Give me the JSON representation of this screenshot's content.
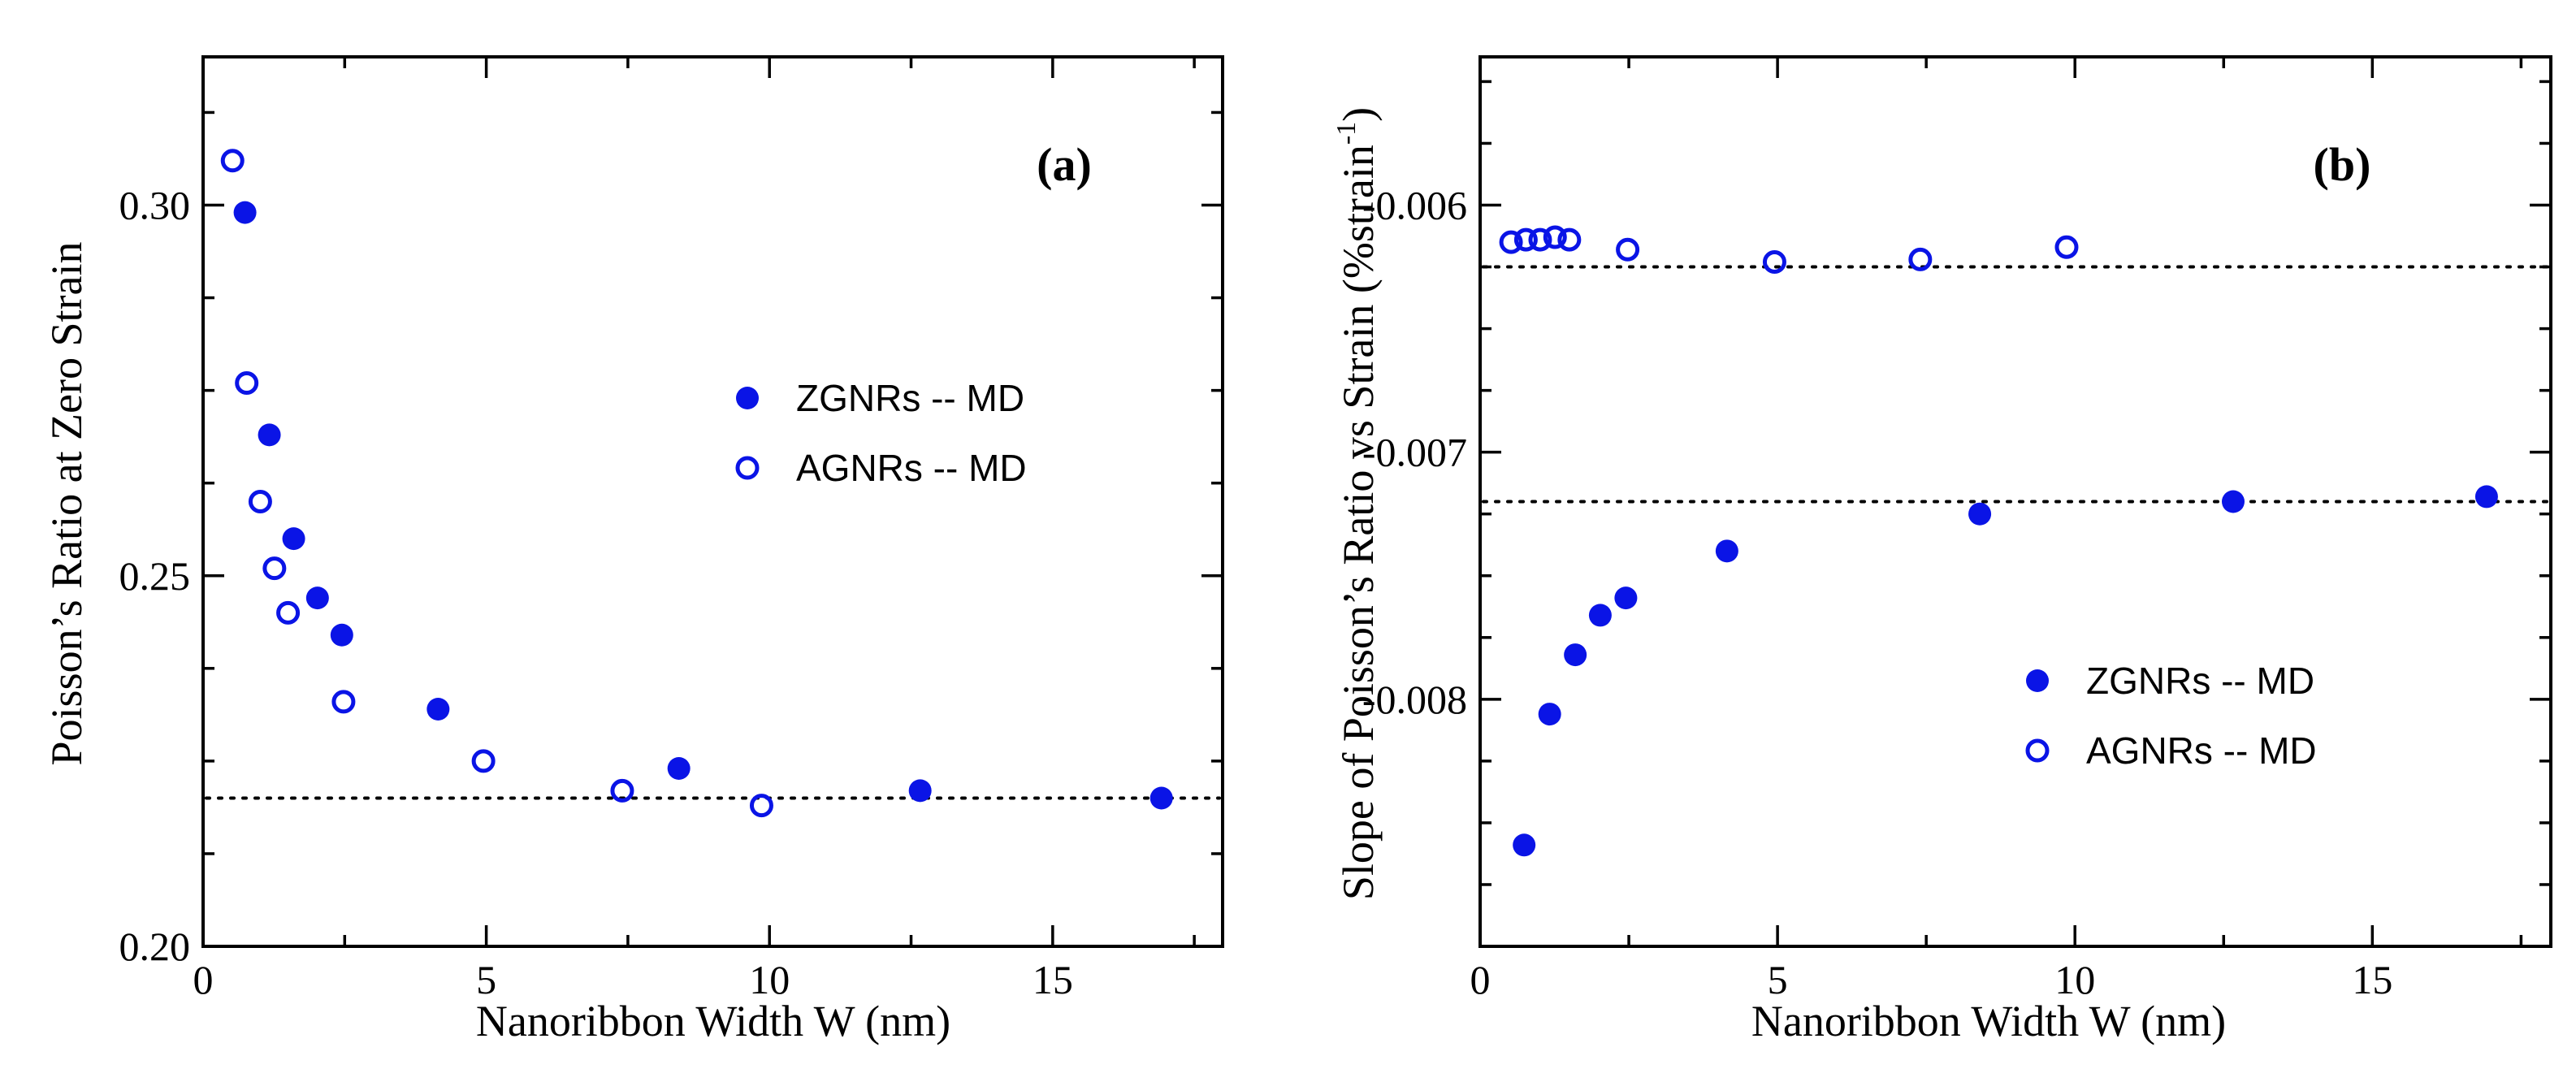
{
  "chart_data": [
    {
      "type": "scatter",
      "panel_label": "(a)",
      "xlabel": "Nanoribbon Width  W (nm)",
      "ylabel": "Poisson’s Ratio at Zero Strain",
      "xlim": [
        0,
        18
      ],
      "ylim": [
        0.2,
        0.32
      ],
      "xticks": [
        0,
        5,
        10,
        15
      ],
      "xtick_labels": [
        "0",
        "5",
        "10",
        "15"
      ],
      "yticks": [
        0.2,
        0.25,
        0.3
      ],
      "ytick_labels": [
        "0.20",
        "0.25",
        "0.30"
      ],
      "legend_position": "center-right",
      "reference_lines": [
        0.22
      ],
      "series": [
        {
          "name": "ZGNRs -- MD",
          "marker": "filled-circle",
          "color": "#0a14e6",
          "x": [
            0.74,
            1.17,
            1.6,
            2.02,
            2.45,
            4.15,
            8.4,
            12.66,
            16.92
          ],
          "y": [
            0.299,
            0.269,
            0.255,
            0.247,
            0.242,
            0.232,
            0.224,
            0.221,
            0.22
          ]
        },
        {
          "name": "AGNRs -- MD",
          "marker": "open-circle",
          "color": "#0a14e6",
          "x": [
            0.52,
            0.77,
            1.01,
            1.26,
            1.5,
            2.48,
            4.95,
            7.4,
            9.86
          ],
          "y": [
            0.306,
            0.276,
            0.26,
            0.251,
            0.245,
            0.233,
            0.225,
            0.221,
            0.219
          ]
        }
      ]
    },
    {
      "type": "scatter",
      "panel_label": "(b)",
      "xlabel": "Nanoribbon Width  W (nm)",
      "ylabel_main": "Slope of Poisson’s Ratio vs Strain (%strain",
      "ylabel_sup": "-1",
      "ylabel_end": ")",
      "xlim": [
        0,
        18
      ],
      "ylim": [
        -0.009,
        -0.0054
      ],
      "xticks": [
        0,
        5,
        10,
        15
      ],
      "xtick_labels": [
        "0",
        "5",
        "10",
        "15"
      ],
      "yticks": [
        -0.008,
        -0.007,
        -0.006
      ],
      "ytick_labels": [
        "-0.008",
        "-0.007",
        "-0.006"
      ],
      "legend_position": "lower-right",
      "reference_lines": [
        -0.00625,
        -0.0072
      ],
      "series": [
        {
          "name": "ZGNRs -- MD",
          "marker": "filled-circle",
          "color": "#0a14e6",
          "x": [
            0.74,
            1.17,
            1.6,
            2.02,
            2.45,
            4.15,
            8.4,
            12.66,
            16.92
          ],
          "y": [
            -0.00859,
            -0.00806,
            -0.00782,
            -0.00766,
            -0.00759,
            -0.0074,
            -0.00725,
            -0.0072,
            -0.00718
          ]
        },
        {
          "name": "AGNRs -- MD",
          "marker": "open-circle",
          "color": "#0a14e6",
          "x": [
            0.52,
            0.77,
            1.01,
            1.26,
            1.5,
            2.48,
            4.95,
            7.4,
            9.86
          ],
          "y": [
            -0.00615,
            -0.00614,
            -0.00614,
            -0.00613,
            -0.00614,
            -0.00618,
            -0.00623,
            -0.00622,
            -0.00617
          ]
        }
      ]
    }
  ]
}
